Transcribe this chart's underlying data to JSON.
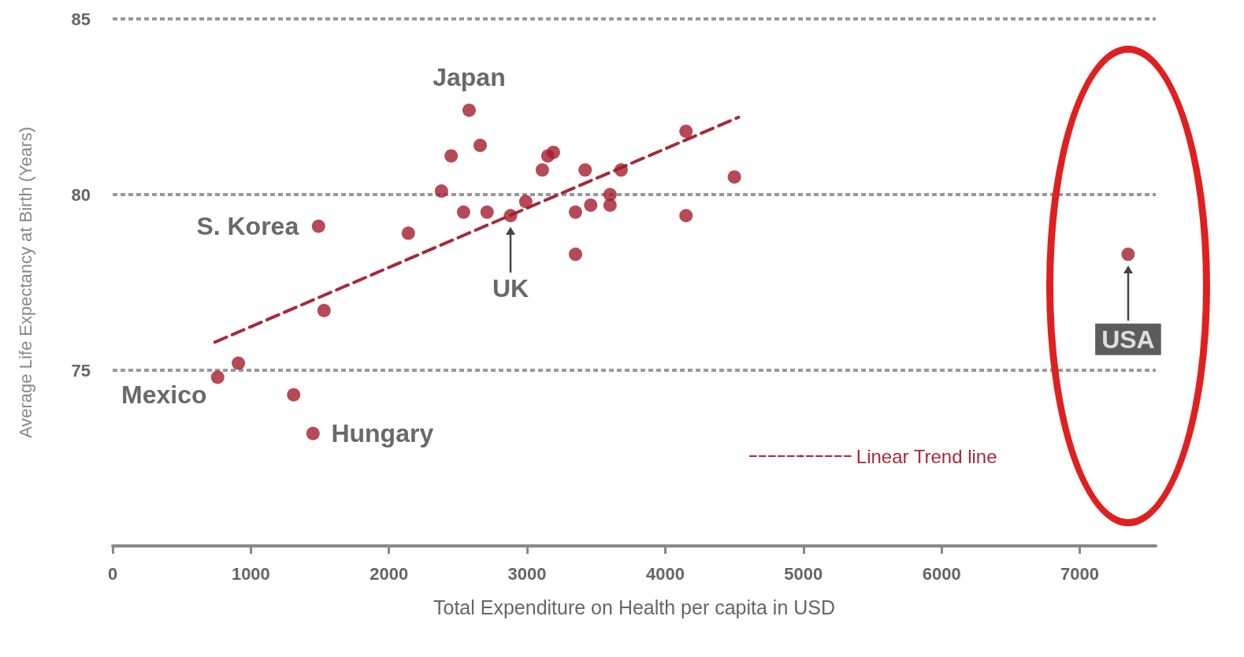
{
  "chart_data": {
    "type": "scatter",
    "xlabel": "Total Expenditure on Health per capita in USD",
    "ylabel": "Average Life Expectancy at Birth (Years)",
    "xlim": [
      0,
      7550
    ],
    "xticks": [
      0,
      1000,
      2000,
      3000,
      4000,
      5000,
      6000,
      7000
    ],
    "ylim": [
      70,
      85
    ],
    "yticks": [
      75,
      80,
      85
    ],
    "grid": "y",
    "legend": "bottom right",
    "marker": "circle",
    "series": [
      {
        "color": "#a51d2d",
        "x": [
          2580,
          2450,
          2660,
          2380,
          2540,
          2710,
          2880,
          2990,
          3110,
          3150,
          3190,
          3420,
          3350,
          3460,
          3600,
          3600,
          3680,
          3350,
          4150,
          4150,
          4500,
          1490,
          2140,
          1530,
          760,
          910,
          1310,
          1450,
          7350
        ],
        "values": [
          82.4,
          81.1,
          81.4,
          80.1,
          79.5,
          79.5,
          79.4,
          79.8,
          80.7,
          81.1,
          81.2,
          80.7,
          79.5,
          79.7,
          80.0,
          79.7,
          80.7,
          78.3,
          81.8,
          79.4,
          80.5,
          79.1,
          78.9,
          76.7,
          74.8,
          75.2,
          74.3,
          73.2,
          78.3
        ]
      },
      {
        "type": "line",
        "name": "Linear Trend line",
        "color": "#a52a3a",
        "line_style": "dashed",
        "marker": "none",
        "x": [
          740,
          4530
        ],
        "values": [
          75.8,
          82.2
        ]
      }
    ],
    "annotations": [
      {
        "text": "Japan",
        "x": 2580,
        "y": 82.4
      },
      {
        "text": "S. Korea",
        "x": 1490,
        "y": 79.1
      },
      {
        "text": "UK",
        "x": 2880,
        "y": 79.4
      },
      {
        "text": "Mexico",
        "x": 760,
        "y": 74.8
      },
      {
        "text": "Hungary",
        "x": 1450,
        "y": 73.2
      },
      {
        "text": "USA",
        "x": 7350,
        "y": 78.3
      }
    ]
  }
}
